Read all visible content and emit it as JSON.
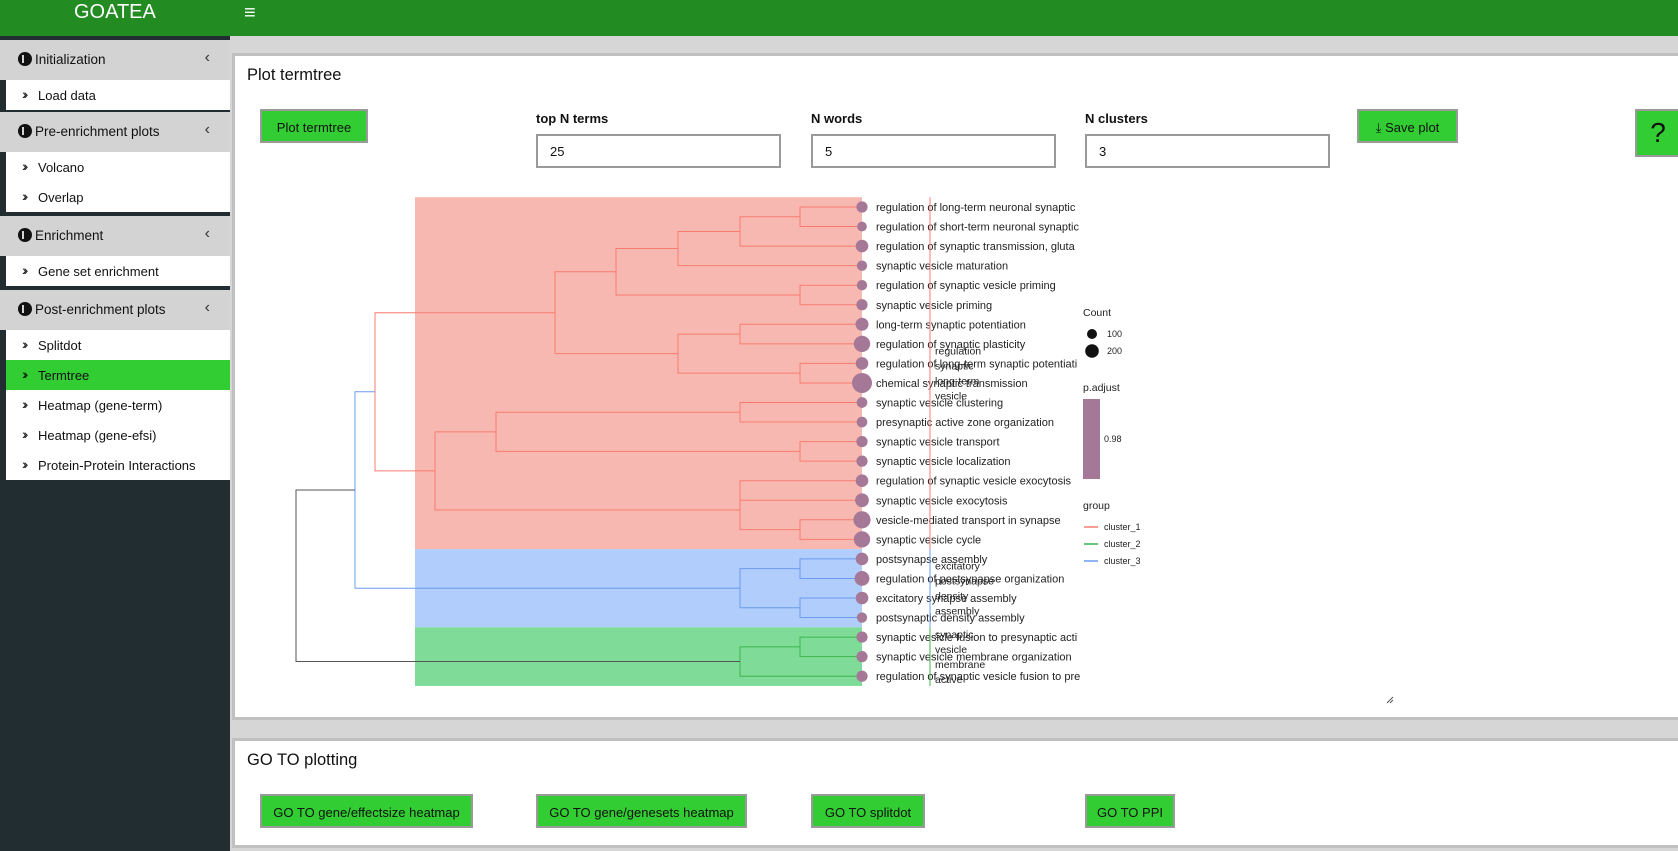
{
  "app": {
    "title": "GOATEA"
  },
  "sidebar": {
    "sections": [
      {
        "label": "Initialization",
        "items": [
          {
            "label": "Load data",
            "active": false
          }
        ]
      },
      {
        "label": "Pre-enrichment plots",
        "items": [
          {
            "label": "Volcano",
            "active": false
          },
          {
            "label": "Overlap",
            "active": false
          }
        ]
      },
      {
        "label": "Enrichment",
        "items": [
          {
            "label": "Gene set enrichment",
            "active": false
          }
        ]
      },
      {
        "label": "Post-enrichment plots",
        "items": [
          {
            "label": "Splitdot",
            "active": false
          },
          {
            "label": "Termtree",
            "active": true
          },
          {
            "label": "Heatmap (gene-term)",
            "active": false
          },
          {
            "label": "Heatmap (gene-efsi)",
            "active": false
          },
          {
            "label": "Protein-Protein Interactions",
            "active": false
          }
        ]
      }
    ]
  },
  "termtree": {
    "title": "Plot termtree",
    "plot_button": "Plot termtree",
    "save_button": "Save plot",
    "help_label": "?",
    "fields": {
      "top_n_terms": {
        "label": "top N terms",
        "value": "25"
      },
      "n_words": {
        "label": "N words",
        "value": "5"
      },
      "n_clusters": {
        "label": "N clusters",
        "value": "3"
      }
    }
  },
  "goto": {
    "title": "GO TO plotting",
    "buttons": [
      "GO TO gene/effectsize heatmap",
      "GO TO gene/genesets heatmap",
      "GO TO splitdot",
      "GO TO PPI"
    ]
  },
  "chart_data": {
    "type": "dendrogram",
    "terms": [
      {
        "label": "regulation of long-term neuronal synaptic",
        "cluster": "cluster_1",
        "count": 60
      },
      {
        "label": "regulation of short-term neuronal synaptic",
        "cluster": "cluster_1",
        "count": 35
      },
      {
        "label": "regulation of synaptic transmission, gluta",
        "cluster": "cluster_1",
        "count": 90
      },
      {
        "label": "synaptic vesicle maturation",
        "cluster": "cluster_1",
        "count": 45
      },
      {
        "label": "regulation of synaptic vesicle priming",
        "cluster": "cluster_1",
        "count": 45
      },
      {
        "label": "synaptic vesicle priming",
        "cluster": "cluster_1",
        "count": 60
      },
      {
        "label": "long-term synaptic potentiation",
        "cluster": "cluster_1",
        "count": 100
      },
      {
        "label": "regulation of synaptic plasticity",
        "cluster": "cluster_1",
        "count": 200
      },
      {
        "label": "regulation of long-term synaptic potentiati",
        "cluster": "cluster_1",
        "count": 90
      },
      {
        "label": "chemical synaptic transmission",
        "cluster": "cluster_1",
        "count": 380
      },
      {
        "label": "synaptic vesicle clustering",
        "cluster": "cluster_1",
        "count": 50
      },
      {
        "label": "presynaptic active zone organization",
        "cluster": "cluster_1",
        "count": 50
      },
      {
        "label": "synaptic vesicle transport",
        "cluster": "cluster_1",
        "count": 60
      },
      {
        "label": "synaptic vesicle localization",
        "cluster": "cluster_1",
        "count": 60
      },
      {
        "label": "regulation of synaptic vesicle exocytosis",
        "cluster": "cluster_1",
        "count": 90
      },
      {
        "label": "synaptic vesicle exocytosis",
        "cluster": "cluster_1",
        "count": 120
      },
      {
        "label": "vesicle-mediated transport in synapse",
        "cluster": "cluster_1",
        "count": 230
      },
      {
        "label": "synaptic vesicle cycle",
        "cluster": "cluster_1",
        "count": 200
      },
      {
        "label": "postsynapse assembly",
        "cluster": "cluster_3",
        "count": 90
      },
      {
        "label": "regulation of postsynapse organization",
        "cluster": "cluster_3",
        "count": 150
      },
      {
        "label": "excitatory synapse assembly",
        "cluster": "cluster_3",
        "count": 90
      },
      {
        "label": "postsynaptic density assembly",
        "cluster": "cluster_3",
        "count": 45
      },
      {
        "label": "synaptic vesicle fusion to presynaptic acti",
        "cluster": "cluster_2",
        "count": 60
      },
      {
        "label": "synaptic vesicle membrane organization",
        "cluster": "cluster_2",
        "count": 60
      },
      {
        "label": "regulation of synaptic vesicle fusion to pre",
        "cluster": "cluster_2",
        "count": 60
      }
    ],
    "cluster_words": [
      {
        "cluster": "cluster_1",
        "words": [
          "regulation",
          "synaptic",
          "long-term",
          "vesicle"
        ]
      },
      {
        "cluster": "cluster_3",
        "words": [
          "excitatory",
          "postsynapse",
          "density",
          "assembly"
        ]
      },
      {
        "cluster": "cluster_2",
        "words": [
          "synaptic",
          "vesicle",
          "membrane",
          "active"
        ]
      }
    ],
    "legend": {
      "count_title": "Count",
      "count_entries": [
        100,
        200
      ],
      "padj_title": "p.adjust",
      "padj_tick": "0.98",
      "group_title": "group",
      "groups": [
        "cluster_1",
        "cluster_2",
        "cluster_3"
      ]
    },
    "colors": {
      "cluster_1": "#f87c6e",
      "cluster_2": "#3cb44b",
      "cluster_3": "#6b9cf0",
      "fill_cluster_1": "#f8b8b2",
      "fill_cluster_2": "#7fdc98",
      "fill_cluster_3": "#b1cdfb",
      "dot": "#a47896"
    }
  }
}
